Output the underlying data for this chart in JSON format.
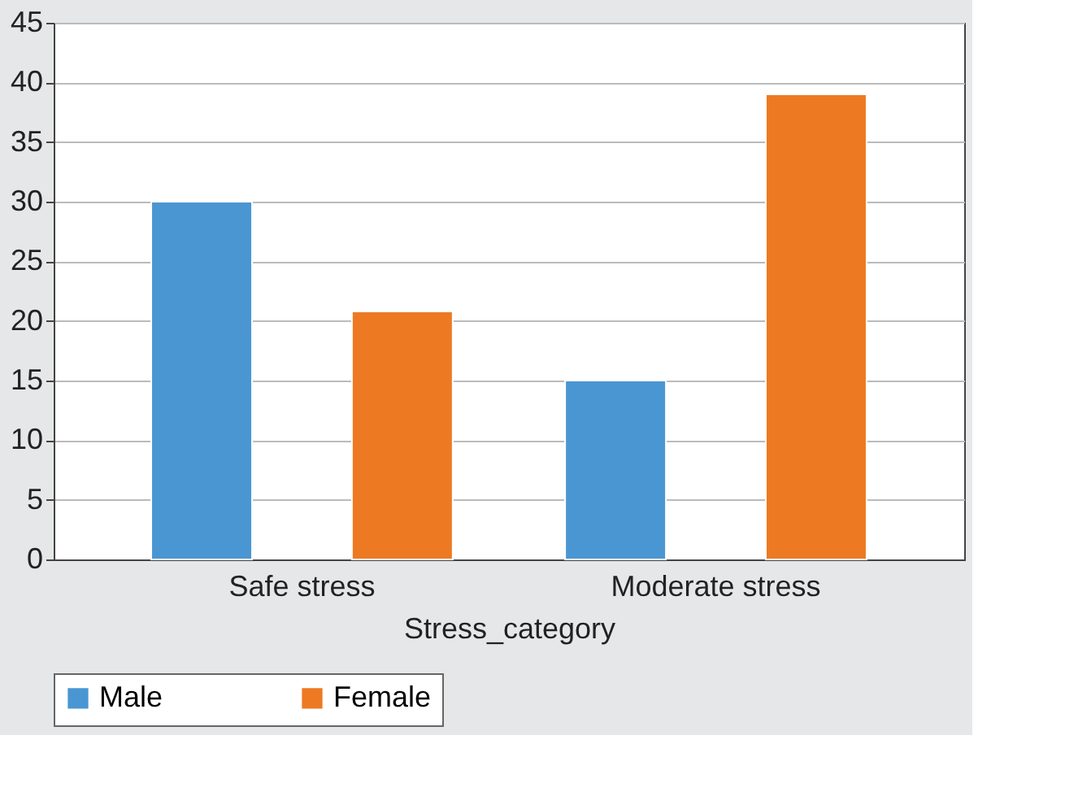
{
  "chart_data": {
    "type": "bar",
    "xlabel": "Stress_category",
    "categories": [
      "Safe stress",
      "Moderate stress"
    ],
    "series": [
      {
        "name": "Male",
        "color": "#4a96d2",
        "values": [
          30,
          15
        ]
      },
      {
        "name": "Female",
        "color": "#ed7a23",
        "values": [
          20.8,
          39
        ]
      }
    ],
    "ylim": [
      0,
      45
    ],
    "yticks": [
      0,
      5,
      10,
      15,
      20,
      25,
      30,
      35,
      40,
      45
    ],
    "grid": "y",
    "legend": "bottom"
  }
}
